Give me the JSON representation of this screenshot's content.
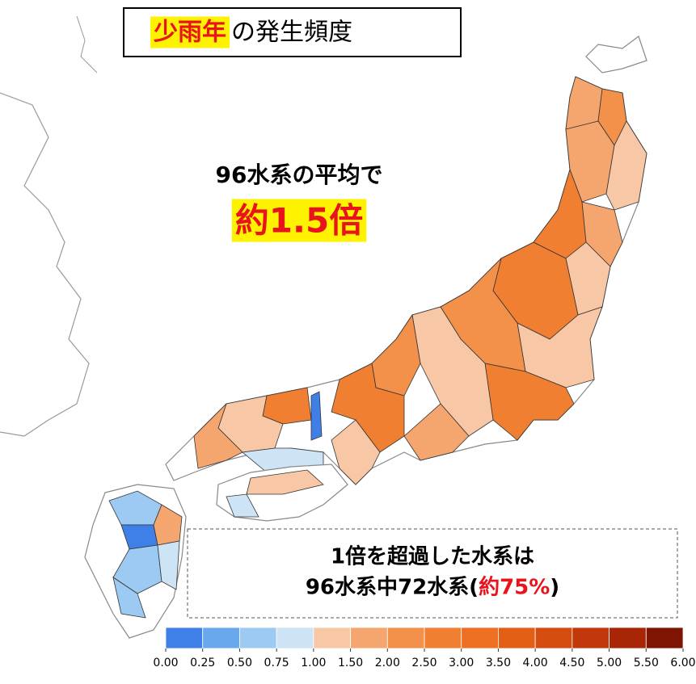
{
  "title": {
    "highlight": "少雨年",
    "rest": "の発生頻度"
  },
  "average": {
    "line1": "96水系の平均で",
    "line2": "約1.5倍"
  },
  "note": {
    "line1": "1倍を超過した水系は",
    "line2_pre": "96水系中72水系(",
    "line2_red": "約75%",
    "line2_post": ")"
  },
  "legend": {
    "ticks": [
      {
        "value": 0,
        "label": "0.00"
      },
      {
        "value": 0.25,
        "label": "0.25"
      },
      {
        "value": 0.5,
        "label": "0.50"
      },
      {
        "value": 0.75,
        "label": "0.75"
      },
      {
        "value": 1,
        "label": "1.00"
      },
      {
        "value": 1.5,
        "label": "1.50"
      },
      {
        "value": 2,
        "label": "2.00"
      },
      {
        "value": 2.5,
        "label": "2.50"
      },
      {
        "value": 3,
        "label": "3.00"
      },
      {
        "value": 3.5,
        "label": "3.50"
      },
      {
        "value": 4,
        "label": "4.00"
      },
      {
        "value": 4.5,
        "label": "4.50"
      },
      {
        "value": 5,
        "label": "5.00"
      },
      {
        "value": 5.5,
        "label": "5.50"
      },
      {
        "value": 6,
        "label": "6.00"
      }
    ],
    "colors": [
      "#3f7fe8",
      "#6aa8ee",
      "#9ccaf2",
      "#cde3f6",
      "#f8c7a6",
      "#f5a56e",
      "#f39049",
      "#f07f32",
      "#ec6f22",
      "#e35f16",
      "#d44c10",
      "#c2380a",
      "#a82505",
      "#801402"
    ]
  }
}
